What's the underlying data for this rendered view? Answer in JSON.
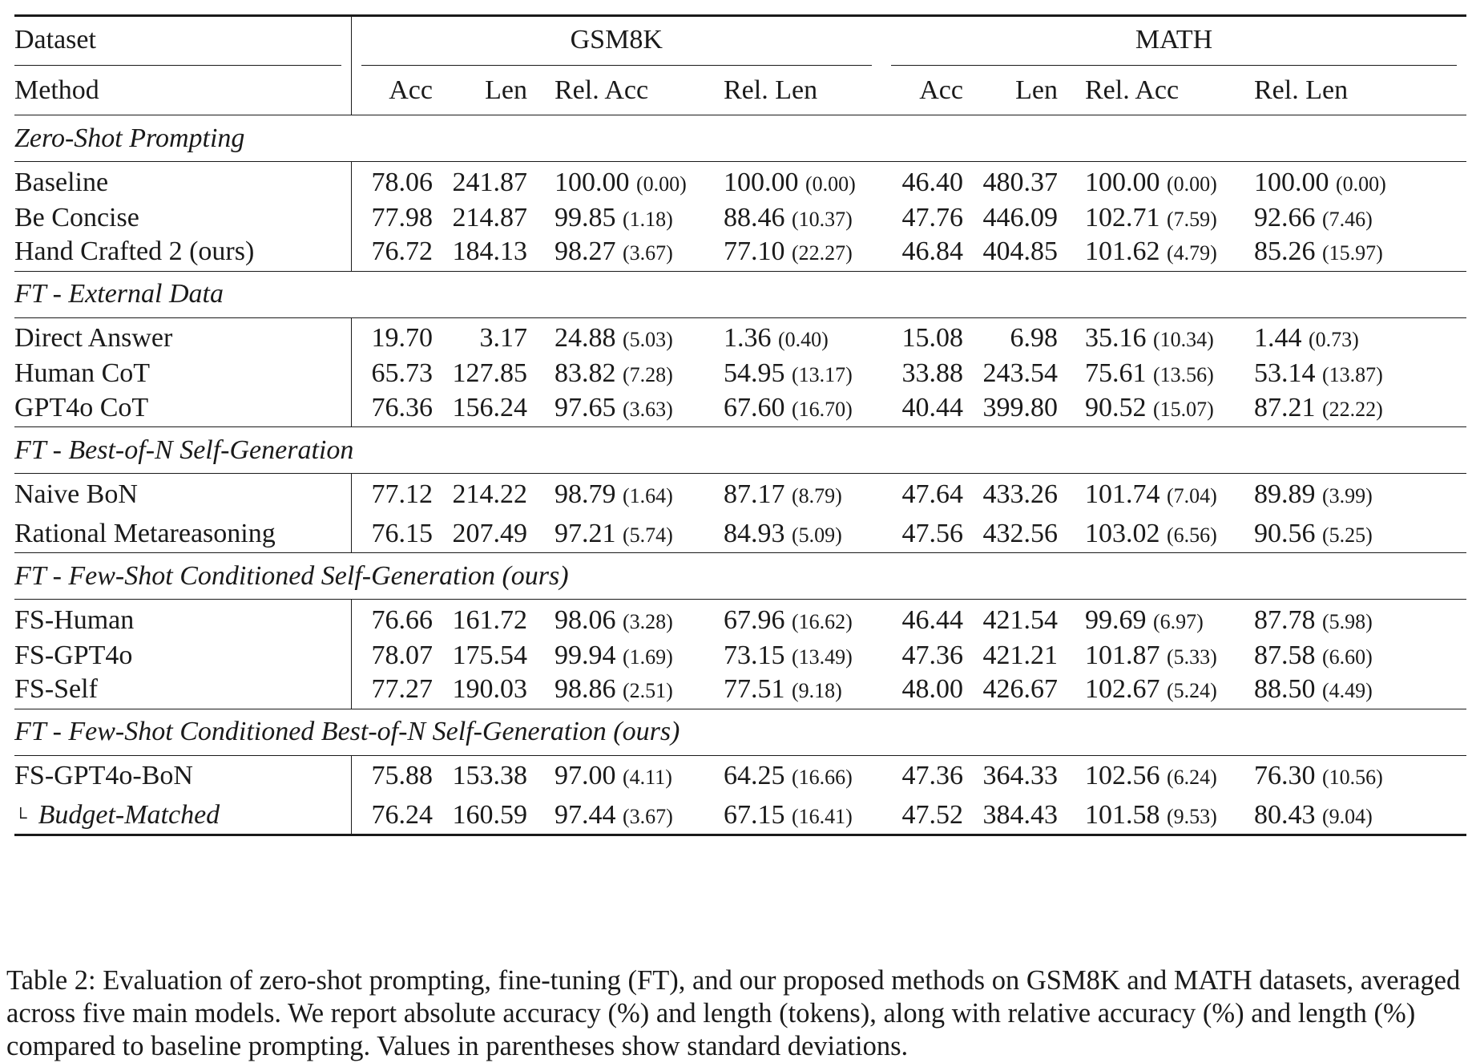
{
  "table": {
    "headers": {
      "dataset_label": "Dataset",
      "method_label": "Method",
      "groups": [
        "GSM8K",
        "MATH"
      ],
      "metrics": [
        "Acc",
        "Len",
        "Rel. Acc",
        "Rel. Len"
      ]
    },
    "sections": [
      {
        "title": "Zero-Shot Prompting",
        "rows": [
          {
            "method": "Baseline",
            "gsm": {
              "acc": "78.06",
              "len": "241.87",
              "rel_acc": "100.00",
              "rel_acc_sd": "(0.00)",
              "rel_len": "100.00",
              "rel_len_sd": "(0.00)"
            },
            "math": {
              "acc": "46.40",
              "len": "480.37",
              "rel_acc": "100.00",
              "rel_acc_sd": "(0.00)",
              "rel_len": "100.00",
              "rel_len_sd": "(0.00)"
            }
          },
          {
            "method": "Be Concise",
            "gsm": {
              "acc": "77.98",
              "len": "214.87",
              "rel_acc": "99.85",
              "rel_acc_sd": "(1.18)",
              "rel_len": "88.46",
              "rel_len_sd": "(10.37)"
            },
            "math": {
              "acc": "47.76",
              "len": "446.09",
              "rel_acc": "102.71",
              "rel_acc_sd": "(7.59)",
              "rel_len": "92.66",
              "rel_len_sd": "(7.46)"
            }
          },
          {
            "method": "Hand Crafted 2 (ours)",
            "gsm": {
              "acc": "76.72",
              "len": "184.13",
              "rel_acc": "98.27",
              "rel_acc_sd": "(3.67)",
              "rel_len": "77.10",
              "rel_len_sd": "(22.27)"
            },
            "math": {
              "acc": "46.84",
              "len": "404.85",
              "rel_acc": "101.62",
              "rel_acc_sd": "(4.79)",
              "rel_len": "85.26",
              "rel_len_sd": "(15.97)"
            }
          }
        ]
      },
      {
        "title": "FT - External Data",
        "rows": [
          {
            "method": "Direct Answer",
            "gsm": {
              "acc": "19.70",
              "len": "3.17",
              "rel_acc": "24.88",
              "rel_acc_sd": "(5.03)",
              "rel_len": "1.36",
              "rel_len_sd": "(0.40)"
            },
            "math": {
              "acc": "15.08",
              "len": "6.98",
              "rel_acc": "35.16",
              "rel_acc_sd": "(10.34)",
              "rel_len": "1.44",
              "rel_len_sd": "(0.73)"
            }
          },
          {
            "method": "Human CoT",
            "gsm": {
              "acc": "65.73",
              "len": "127.85",
              "rel_acc": "83.82",
              "rel_acc_sd": "(7.28)",
              "rel_len": "54.95",
              "rel_len_sd": "(13.17)"
            },
            "math": {
              "acc": "33.88",
              "len": "243.54",
              "rel_acc": "75.61",
              "rel_acc_sd": "(13.56)",
              "rel_len": "53.14",
              "rel_len_sd": "(13.87)"
            }
          },
          {
            "method": "GPT4o CoT",
            "gsm": {
              "acc": "76.36",
              "len": "156.24",
              "rel_acc": "97.65",
              "rel_acc_sd": "(3.63)",
              "rel_len": "67.60",
              "rel_len_sd": "(16.70)"
            },
            "math": {
              "acc": "40.44",
              "len": "399.80",
              "rel_acc": "90.52",
              "rel_acc_sd": "(15.07)",
              "rel_len": "87.21",
              "rel_len_sd": "(22.22)"
            }
          }
        ]
      },
      {
        "title": "FT - Best-of-N Self-Generation",
        "rows": [
          {
            "method": "Naive BoN",
            "gsm": {
              "acc": "77.12",
              "len": "214.22",
              "rel_acc": "98.79",
              "rel_acc_sd": "(1.64)",
              "rel_len": "87.17",
              "rel_len_sd": "(8.79)"
            },
            "math": {
              "acc": "47.64",
              "len": "433.26",
              "rel_acc": "101.74",
              "rel_acc_sd": "(7.04)",
              "rel_len": "89.89",
              "rel_len_sd": "(3.99)"
            }
          },
          {
            "method": "Rational Metareasoning",
            "gsm": {
              "acc": "76.15",
              "len": "207.49",
              "rel_acc": "97.21",
              "rel_acc_sd": "(5.74)",
              "rel_len": "84.93",
              "rel_len_sd": "(5.09)"
            },
            "math": {
              "acc": "47.56",
              "len": "432.56",
              "rel_acc": "103.02",
              "rel_acc_sd": "(6.56)",
              "rel_len": "90.56",
              "rel_len_sd": "(5.25)"
            }
          }
        ]
      },
      {
        "title": "FT - Few-Shot Conditioned Self-Generation (ours)",
        "rows": [
          {
            "method": "FS-Human",
            "gsm": {
              "acc": "76.66",
              "len": "161.72",
              "rel_acc": "98.06",
              "rel_acc_sd": "(3.28)",
              "rel_len": "67.96",
              "rel_len_sd": "(16.62)"
            },
            "math": {
              "acc": "46.44",
              "len": "421.54",
              "rel_acc": "99.69",
              "rel_acc_sd": "(6.97)",
              "rel_len": "87.78",
              "rel_len_sd": "(5.98)"
            }
          },
          {
            "method": "FS-GPT4o",
            "gsm": {
              "acc": "78.07",
              "len": "175.54",
              "rel_acc": "99.94",
              "rel_acc_sd": "(1.69)",
              "rel_len": "73.15",
              "rel_len_sd": "(13.49)"
            },
            "math": {
              "acc": "47.36",
              "len": "421.21",
              "rel_acc": "101.87",
              "rel_acc_sd": "(5.33)",
              "rel_len": "87.58",
              "rel_len_sd": "(6.60)"
            }
          },
          {
            "method": "FS-Self",
            "gsm": {
              "acc": "77.27",
              "len": "190.03",
              "rel_acc": "98.86",
              "rel_acc_sd": "(2.51)",
              "rel_len": "77.51",
              "rel_len_sd": "(9.18)"
            },
            "math": {
              "acc": "48.00",
              "len": "426.67",
              "rel_acc": "102.67",
              "rel_acc_sd": "(5.24)",
              "rel_len": "88.50",
              "rel_len_sd": "(4.49)"
            }
          }
        ]
      },
      {
        "title": "FT - Few-Shot Conditioned Best-of-N Self-Generation (ours)",
        "rows": [
          {
            "method": "FS-GPT4o-BoN",
            "gsm": {
              "acc": "75.88",
              "len": "153.38",
              "rel_acc": "97.00",
              "rel_acc_sd": "(4.11)",
              "rel_len": "64.25",
              "rel_len_sd": "(16.66)"
            },
            "math": {
              "acc": "47.36",
              "len": "364.33",
              "rel_acc": "102.56",
              "rel_acc_sd": "(6.24)",
              "rel_len": "76.30",
              "rel_len_sd": "(10.56)"
            }
          },
          {
            "method": "Budget-Matched",
            "sub": true,
            "gsm": {
              "acc": "76.24",
              "len": "160.59",
              "rel_acc": "97.44",
              "rel_acc_sd": "(3.67)",
              "rel_len": "67.15",
              "rel_len_sd": "(16.41)"
            },
            "math": {
              "acc": "47.52",
              "len": "384.43",
              "rel_acc": "101.58",
              "rel_acc_sd": "(9.53)",
              "rel_len": "80.43",
              "rel_len_sd": "(9.04)"
            }
          }
        ]
      }
    ]
  },
  "caption": "Table 2: Evaluation of zero-shot prompting, fine-tuning (FT), and our proposed methods on GSM8K and MATH datasets, averaged across five main models. We report absolute accuracy (%) and length (tokens), along with relative accuracy (%) and length (%) compared to baseline prompting. Values in parentheses show standard deviations."
}
